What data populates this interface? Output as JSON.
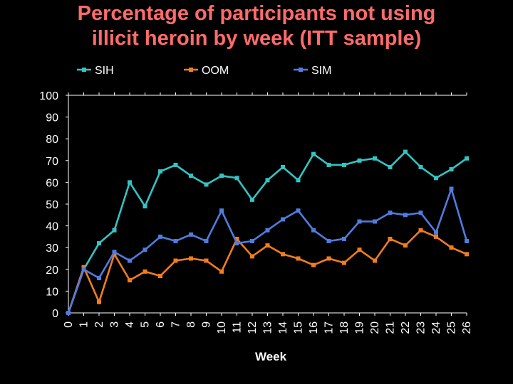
{
  "slide": {
    "title_line1": "Percentage of participants not using",
    "title_line2": "illicit heroin by week (ITT sample)",
    "title_color": "#ff6b6b",
    "background": "#000000"
  },
  "chart_data": {
    "type": "line",
    "title": "",
    "xlabel": "Week",
    "ylabel": "",
    "x": [
      0,
      1,
      2,
      3,
      4,
      5,
      6,
      7,
      8,
      9,
      10,
      11,
      12,
      13,
      14,
      15,
      16,
      17,
      18,
      19,
      20,
      21,
      22,
      23,
      24,
      25,
      26
    ],
    "ylim": [
      0,
      100
    ],
    "yticks": [
      0,
      10,
      20,
      30,
      40,
      50,
      60,
      70,
      80,
      90,
      100
    ],
    "grid": false,
    "legend_position": "top",
    "series": [
      {
        "name": "SIH",
        "color": "#33c4c4",
        "values": [
          0,
          20,
          32,
          38,
          60,
          49,
          65,
          68,
          63,
          59,
          63,
          62,
          52,
          61,
          67,
          61,
          73,
          68,
          68,
          70,
          71,
          67,
          74,
          67,
          62,
          66,
          71
        ]
      },
      {
        "name": "OOM",
        "color": "#f07d1e",
        "values": [
          0,
          21,
          5,
          27,
          15,
          19,
          17,
          24,
          25,
          24,
          19,
          34,
          26,
          31,
          27,
          25,
          22,
          25,
          23,
          29,
          24,
          34,
          31,
          38,
          35,
          30,
          27
        ]
      },
      {
        "name": "SIM",
        "color": "#4f7ce0",
        "values": [
          0,
          20,
          16,
          28,
          24,
          29,
          35,
          33,
          36,
          33,
          47,
          32,
          33,
          38,
          43,
          47,
          38,
          33,
          34,
          42,
          42,
          46,
          45,
          46,
          37,
          57,
          33
        ]
      }
    ]
  }
}
